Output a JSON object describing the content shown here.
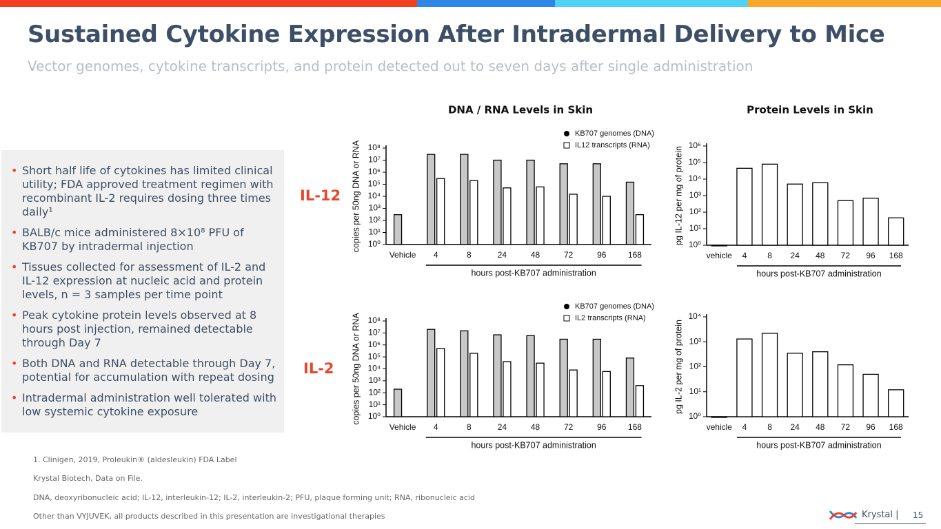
{
  "header": {
    "title": "Sustained Cytokine Expression After Intradermal Delivery to Mice",
    "subtitle": "Vector genomes, cytokine transcripts, and protein detected out to seven days after single administration"
  },
  "bullets": [
    "Short half life of cytokines has limited clinical utility; FDA approved treatment regimen with recombinant IL-2 requires dosing three times daily¹",
    "BALB/c mice administered 8×10⁸ PFU of KB707 by intradermal injection",
    "Tissues collected for assessment of IL-2 and IL-12 expression at nucleic acid and protein levels, n = 3 samples per time point",
    "Peak cytokine protein levels observed at 8 hours post injection, remained detectable through Day 7",
    "Both DNA and RNA detectable through Day 7, potential for accumulation with repeat dosing",
    "Intradermal administration well tolerated with low systemic cytokine exposure"
  ],
  "row_labels": [
    "IL-12",
    "IL-2"
  ],
  "footnotes": [
    "1. Clinigen, 2019, Proleukin® (aldesleukin) FDA Label",
    "Krystal Biotech, Data on File.",
    "DNA, deoxyribonucleic acid; IL-12, interleukin-12; IL-2, interleukin-2; PFU, plaque forming unit; RNA, ribonucleic acid",
    "Other than VYJUVEK, all products described in this presentation are investigational therapies"
  ],
  "footer": {
    "brand": "Krystal |",
    "page": "15"
  },
  "chart_data": [
    {
      "type": "bar",
      "title": "DNA / RNA Levels in Skin",
      "ylabel": "copies per 50ng DNA or RNA",
      "xlabel": "hours post-KB707 administration",
      "categories": [
        "Vehicle",
        "4",
        "8",
        "24",
        "48",
        "72",
        "96",
        "168"
      ],
      "series": [
        {
          "name": "KB707 genomes (DNA)",
          "color": "#c8c8c8",
          "values": [
            300,
            30000000,
            30000000,
            10000000,
            10000000,
            5000000,
            5000000,
            150000
          ]
        },
        {
          "name": "IL12 transcripts (RNA)",
          "color": "#ffffff",
          "values": [
            null,
            300000,
            200000,
            50000,
            60000,
            15000,
            10000,
            300
          ]
        }
      ],
      "log_scale": true,
      "ylim": [
        1,
        100000000
      ],
      "yticks": [
        {
          "value": 1,
          "label": "10⁰"
        },
        {
          "value": 10,
          "label": "10¹"
        },
        {
          "value": 100,
          "label": "10²"
        },
        {
          "value": 1000,
          "label": "10³"
        },
        {
          "value": 10000,
          "label": "10⁴"
        },
        {
          "value": 100000,
          "label": "10⁵"
        },
        {
          "value": 1000000,
          "label": "10⁶"
        },
        {
          "value": 10000000,
          "label": "10⁷"
        },
        {
          "value": 100000000,
          "label": "10⁸"
        }
      ]
    },
    {
      "type": "bar",
      "title": "Protein Levels in Skin",
      "ylabel": "pg IL-12 per mg of protein",
      "xlabel": "hours post-KB707 administration",
      "categories": [
        "vehicle",
        "4",
        "8",
        "24",
        "48",
        "72",
        "96",
        "168"
      ],
      "series": [
        {
          "name": "IL-12",
          "color": "#ffffff",
          "values": [
            1,
            45000,
            80000,
            5000,
            6000,
            500,
            700,
            45
          ]
        }
      ],
      "log_scale": true,
      "ylim": [
        1,
        1000000
      ],
      "yticks": [
        {
          "value": 1,
          "label": "10⁰"
        },
        {
          "value": 10,
          "label": "10¹"
        },
        {
          "value": 100,
          "label": "10²"
        },
        {
          "value": 1000,
          "label": "10³"
        },
        {
          "value": 10000,
          "label": "10⁴"
        },
        {
          "value": 100000,
          "label": "10⁵"
        },
        {
          "value": 1000000,
          "label": "10⁶"
        }
      ]
    },
    {
      "type": "bar",
      "ylabel": "copies per 50ng DNA or RNA",
      "xlabel": "hours post-KB707 administration",
      "categories": [
        "Vehicle",
        "4",
        "8",
        "24",
        "48",
        "72",
        "96",
        "168"
      ],
      "series": [
        {
          "name": "KB707 genomes (DNA)",
          "color": "#c8c8c8",
          "values": [
            200,
            20000000,
            15000000,
            7000000,
            6000000,
            3000000,
            3000000,
            80000
          ]
        },
        {
          "name": "IL2 transcripts (RNA)",
          "color": "#ffffff",
          "values": [
            null,
            500000,
            200000,
            40000,
            30000,
            8000,
            6000,
            400
          ]
        }
      ],
      "log_scale": true,
      "ylim": [
        1,
        100000000
      ],
      "yticks": [
        {
          "value": 1,
          "label": "10⁰"
        },
        {
          "value": 10,
          "label": "10¹"
        },
        {
          "value": 100,
          "label": "10²"
        },
        {
          "value": 1000,
          "label": "10³"
        },
        {
          "value": 10000,
          "label": "10⁴"
        },
        {
          "value": 100000,
          "label": "10⁵"
        },
        {
          "value": 1000000,
          "label": "10⁶"
        },
        {
          "value": 10000000,
          "label": "10⁷"
        },
        {
          "value": 100000000,
          "label": "10⁸"
        }
      ]
    },
    {
      "type": "bar",
      "ylabel": "pg IL-2 per mg of protein",
      "xlabel": "hours post-KB707 administration",
      "categories": [
        "vehicle",
        "4",
        "8",
        "24",
        "48",
        "72",
        "96",
        "168"
      ],
      "series": [
        {
          "name": "IL-2",
          "color": "#ffffff",
          "values": [
            1,
            1300,
            2200,
            350,
            400,
            120,
            50,
            12
          ]
        }
      ],
      "log_scale": true,
      "ylim": [
        1,
        10000
      ],
      "yticks": [
        {
          "value": 1,
          "label": "10⁰"
        },
        {
          "value": 10,
          "label": "10¹"
        },
        {
          "value": 100,
          "label": "10²"
        },
        {
          "value": 1000,
          "label": "10³"
        },
        {
          "value": 10000,
          "label": "10⁴"
        }
      ]
    }
  ]
}
